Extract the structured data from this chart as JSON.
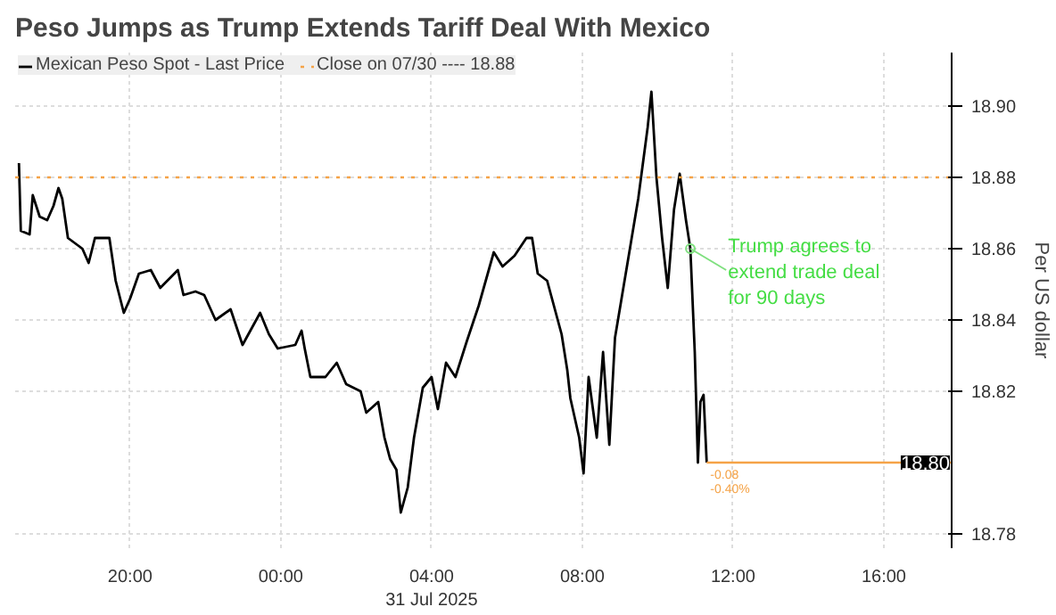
{
  "chart_data": {
    "type": "line",
    "title": "Peso Jumps as Trump Extends Tariff Deal With Mexico",
    "y2label": "Per US dollar",
    "x": [
      "2025-07-30T17:03",
      "2025-07-30T17:06",
      "2025-07-30T17:20",
      "2025-07-30T17:25",
      "2025-07-30T17:36",
      "2025-07-30T17:48",
      "2025-07-30T17:58",
      "2025-07-30T18:06",
      "2025-07-30T18:12",
      "2025-07-30T18:21",
      "2025-07-30T18:44",
      "2025-07-30T18:54",
      "2025-07-30T19:04",
      "2025-07-30T19:27",
      "2025-07-30T19:37",
      "2025-07-30T19:50",
      "2025-07-30T20:00",
      "2025-07-30T20:14",
      "2025-07-30T20:33",
      "2025-07-30T20:48",
      "2025-07-30T21:16",
      "2025-07-30T21:25",
      "2025-07-30T21:44",
      "2025-07-30T21:58",
      "2025-07-30T22:16",
      "2025-07-30T22:40",
      "2025-07-30T22:59",
      "2025-07-30T23:27",
      "2025-07-30T23:41",
      "2025-07-30T23:55",
      "2025-07-31T00:23",
      "2025-07-31T00:33",
      "2025-07-31T00:38",
      "2025-07-31T00:47",
      "2025-07-31T01:11",
      "2025-07-31T01:29",
      "2025-07-31T01:44",
      "2025-07-31T02:07",
      "2025-07-31T02:16",
      "2025-07-31T02:35",
      "2025-07-31T02:45",
      "2025-07-31T02:54",
      "2025-07-31T03:04",
      "2025-07-31T03:11",
      "2025-07-31T03:22",
      "2025-07-31T03:32",
      "2025-07-31T03:46",
      "2025-07-31T04:00",
      "2025-07-31T04:10",
      "2025-07-31T04:23",
      "2025-07-31T04:38",
      "2025-07-31T04:56",
      "2025-07-31T05:15",
      "2025-07-31T05:39",
      "2025-07-31T05:53",
      "2025-07-31T06:12",
      "2025-07-31T06:31",
      "2025-07-31T06:40",
      "2025-07-31T06:49",
      "2025-07-31T07:04",
      "2025-07-31T07:27",
      "2025-07-31T07:36",
      "2025-07-31T07:41",
      "2025-07-31T07:55",
      "2025-07-31T08:02",
      "2025-07-31T08:10",
      "2025-07-31T08:23",
      "2025-07-31T08:33",
      "2025-07-31T08:43",
      "2025-07-31T08:52",
      "2025-07-31T09:11",
      "2025-07-31T09:29",
      "2025-07-31T09:44",
      "2025-07-31T09:50",
      "2025-07-31T09:58",
      "2025-07-31T10:07",
      "2025-07-31T10:16",
      "2025-07-31T10:26",
      "2025-07-31T10:35",
      "2025-07-31T10:45",
      "2025-07-31T10:52",
      "2025-07-31T10:59",
      "2025-07-31T11:04",
      "2025-07-31T11:08",
      "2025-07-31T11:13",
      "2025-07-31T11:18"
    ],
    "series": [
      {
        "name": "Mexican Peso Spot - Last Price",
        "color": "#000000",
        "values": [
          18.884,
          18.865,
          18.864,
          18.875,
          18.869,
          18.868,
          18.872,
          18.877,
          18.874,
          18.863,
          18.86,
          18.856,
          18.863,
          18.863,
          18.851,
          18.842,
          18.846,
          18.853,
          18.854,
          18.849,
          18.854,
          18.847,
          18.848,
          18.847,
          18.84,
          18.843,
          18.833,
          18.842,
          18.836,
          18.832,
          18.833,
          18.837,
          18.832,
          18.824,
          18.824,
          18.828,
          18.822,
          18.82,
          18.814,
          18.817,
          18.807,
          18.801,
          18.798,
          18.786,
          18.793,
          18.807,
          18.821,
          18.824,
          18.815,
          18.828,
          18.824,
          18.834,
          18.844,
          18.859,
          18.855,
          18.858,
          18.863,
          18.863,
          18.853,
          18.851,
          18.836,
          18.826,
          18.818,
          18.807,
          18.797,
          18.824,
          18.807,
          18.831,
          18.805,
          18.835,
          18.855,
          18.874,
          18.894,
          18.904,
          18.88,
          18.863,
          18.849,
          18.871,
          18.881,
          18.868,
          18.86,
          18.831,
          18.8,
          18.817,
          18.819,
          18.8
        ]
      }
    ],
    "xlim": [
      "2025-07-30T16:57",
      "2025-07-31T17:48"
    ],
    "ylim": [
      18.776,
      18.915
    ],
    "xticks": [
      {
        "value": "2025-07-30T20:00",
        "label": "20:00"
      },
      {
        "value": "2025-07-31T00:00",
        "label": "00:00"
      },
      {
        "value": "2025-07-31T04:00",
        "label": "04:00\n31 Jul 2025"
      },
      {
        "value": "2025-07-31T08:00",
        "label": "08:00"
      },
      {
        "value": "2025-07-31T12:00",
        "label": "12:00"
      },
      {
        "value": "2025-07-31T16:00",
        "label": "16:00"
      }
    ],
    "yticks": [
      {
        "value": 18.78,
        "label": "18.78"
      },
      {
        "value": 18.82,
        "label": "18.82"
      },
      {
        "value": 18.84,
        "label": "18.84"
      },
      {
        "value": 18.86,
        "label": "18.86"
      },
      {
        "value": 18.88,
        "label": "18.88"
      },
      {
        "value": 18.9,
        "label": "18.90"
      }
    ],
    "ref_lines": [
      {
        "axis": "y",
        "value": 18.88,
        "label": "Close on 07/30 ---- 18.88",
        "color": "#f5a347",
        "line_style": "dotted"
      },
      {
        "axis": "y",
        "value": 18.8,
        "label": "18.80",
        "color": "#f5a347",
        "line_style": "solid"
      }
    ],
    "annotations": [
      {
        "text": "Trump agrees to\nextend trade deal\nfor 90 days",
        "x": "2025-07-31T10:52",
        "y": 18.86
      },
      "-0.08",
      "-0.40%"
    ],
    "grid": true,
    "legend": "top left",
    "line_style": "solid",
    "marker": "none"
  }
}
